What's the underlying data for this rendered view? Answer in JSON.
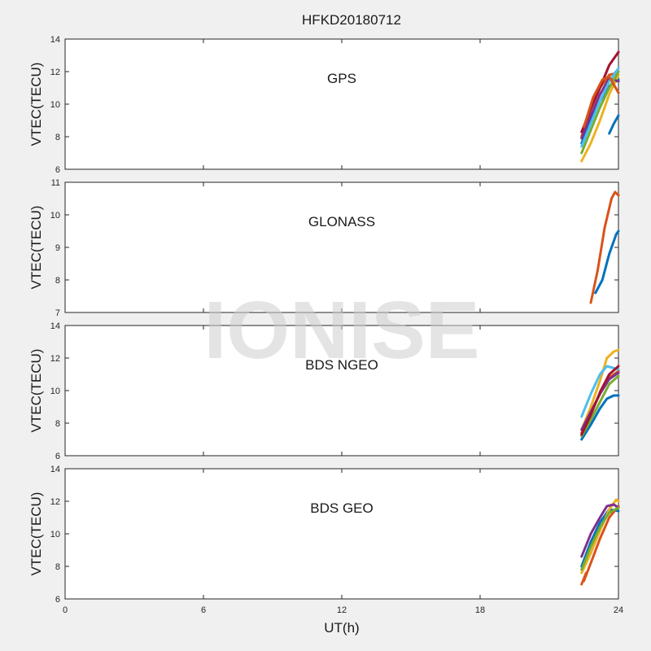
{
  "figure": {
    "title": "HFKD20180712",
    "xlabel": "UT(h)",
    "watermark": "IONISE"
  },
  "chart_data": [
    {
      "type": "line",
      "panel_label": "GPS",
      "ylabel": "VTEC(TECU)",
      "xlim": [
        0,
        24
      ],
      "ylim": [
        6,
        14
      ],
      "xticks": [
        0,
        6,
        12,
        18,
        24
      ],
      "yticks": [
        6,
        8,
        10,
        12,
        14
      ],
      "series": [
        {
          "color": "#0072bd",
          "x": [
            22.4,
            22.8,
            23.2,
            23.6,
            24.0
          ],
          "y": [
            7.6,
            9.0,
            10.2,
            11.1,
            11.5
          ]
        },
        {
          "color": "#d95319",
          "x": [
            22.4,
            22.8,
            23.2,
            23.6,
            23.9
          ],
          "y": [
            8.0,
            9.8,
            11.0,
            11.8,
            11.9
          ]
        },
        {
          "color": "#edb120",
          "x": [
            22.4,
            22.8,
            23.2,
            23.6,
            24.0
          ],
          "y": [
            6.5,
            7.6,
            9.0,
            10.6,
            11.8
          ]
        },
        {
          "color": "#7e2f8e",
          "x": [
            22.4,
            22.8,
            23.2,
            23.6,
            24.0
          ],
          "y": [
            7.9,
            9.3,
            10.6,
            11.6,
            11.4
          ]
        },
        {
          "color": "#77ac30",
          "x": [
            22.4,
            22.8,
            23.2,
            23.6,
            24.0
          ],
          "y": [
            7.0,
            8.4,
            9.8,
            11.0,
            12.0
          ]
        },
        {
          "color": "#4dbeee",
          "x": [
            22.4,
            22.8,
            23.2,
            23.6,
            24.0
          ],
          "y": [
            7.4,
            8.8,
            10.2,
            11.4,
            12.2
          ]
        },
        {
          "color": "#a2142f",
          "x": [
            22.4,
            22.8,
            23.2,
            23.6,
            24.0
          ],
          "y": [
            8.3,
            9.7,
            11.0,
            12.4,
            13.2
          ]
        },
        {
          "color": "#0072bd",
          "x": [
            23.6,
            23.8,
            24.0
          ],
          "y": [
            8.2,
            8.8,
            9.3
          ]
        },
        {
          "color": "#d95319",
          "x": [
            22.5,
            22.9,
            23.3,
            23.6,
            24.0
          ],
          "y": [
            8.6,
            10.4,
            11.5,
            11.7,
            10.7
          ]
        }
      ]
    },
    {
      "type": "line",
      "panel_label": "GLONASS",
      "ylabel": "VTEC(TECU)",
      "xlim": [
        0,
        24
      ],
      "ylim": [
        7,
        11
      ],
      "xticks": [
        0,
        6,
        12,
        18,
        24
      ],
      "yticks": [
        7,
        8,
        9,
        10,
        11
      ],
      "series": [
        {
          "color": "#d95319",
          "x": [
            22.8,
            23.1,
            23.4,
            23.7,
            23.85,
            24.0
          ],
          "y": [
            7.3,
            8.3,
            9.6,
            10.5,
            10.7,
            10.6
          ]
        },
        {
          "color": "#0072bd",
          "x": [
            23.0,
            23.3,
            23.6,
            23.9,
            24.0
          ],
          "y": [
            7.6,
            8.0,
            8.8,
            9.4,
            9.5
          ]
        }
      ]
    },
    {
      "type": "line",
      "panel_label": "BDS NGEO",
      "ylabel": "VTEC(TECU)",
      "xlim": [
        0,
        24
      ],
      "ylim": [
        6,
        14
      ],
      "xticks": [
        0,
        6,
        12,
        18,
        24
      ],
      "yticks": [
        6,
        8,
        10,
        12,
        14
      ],
      "series": [
        {
          "color": "#0072bd",
          "x": [
            22.4,
            22.8,
            23.2,
            23.5,
            23.8,
            24.0
          ],
          "y": [
            7.0,
            7.9,
            8.9,
            9.5,
            9.7,
            9.7
          ]
        },
        {
          "color": "#d95319",
          "x": [
            22.4,
            22.8,
            23.2,
            23.6,
            24.0
          ],
          "y": [
            7.4,
            8.6,
            9.8,
            10.8,
            11.2
          ]
        },
        {
          "color": "#edb120",
          "x": [
            22.4,
            22.8,
            23.2,
            23.5,
            23.8,
            24.0
          ],
          "y": [
            7.6,
            9.0,
            10.6,
            12.0,
            12.4,
            12.5
          ]
        },
        {
          "color": "#7e2f8e",
          "x": [
            22.4,
            22.8,
            23.2,
            23.6,
            24.0
          ],
          "y": [
            7.6,
            8.7,
            9.8,
            10.7,
            11.1
          ]
        },
        {
          "color": "#77ac30",
          "x": [
            22.4,
            22.8,
            23.2,
            23.6,
            24.0
          ],
          "y": [
            7.2,
            8.2,
            9.3,
            10.4,
            10.9
          ]
        },
        {
          "color": "#4dbeee",
          "x": [
            22.4,
            22.8,
            23.2,
            23.5,
            24.0
          ],
          "y": [
            8.4,
            9.8,
            11.0,
            11.5,
            11.3
          ]
        },
        {
          "color": "#a2142f",
          "x": [
            22.4,
            22.8,
            23.2,
            23.6,
            24.0
          ],
          "y": [
            7.3,
            8.5,
            9.9,
            11.0,
            11.5
          ]
        }
      ]
    },
    {
      "type": "line",
      "panel_label": "BDS GEO",
      "ylabel": "VTEC(TECU)",
      "xlim": [
        0,
        24
      ],
      "ylim": [
        6,
        14
      ],
      "xticks": [
        0,
        6,
        12,
        18,
        24
      ],
      "yticks": [
        6,
        8,
        10,
        12,
        14
      ],
      "series": [
        {
          "color": "#0072bd",
          "x": [
            22.4,
            22.8,
            23.2,
            23.6,
            24.0
          ],
          "y": [
            8.0,
            9.5,
            10.7,
            11.5,
            11.4
          ]
        },
        {
          "color": "#d95319",
          "x": [
            22.5,
            22.8,
            23.2,
            23.6,
            24.0
          ],
          "y": [
            7.1,
            8.2,
            9.7,
            11.0,
            11.7
          ]
        },
        {
          "color": "#edb120",
          "x": [
            22.4,
            22.8,
            23.2,
            23.6,
            23.9,
            24.0
          ],
          "y": [
            7.6,
            8.8,
            10.2,
            11.5,
            12.1,
            12.0
          ]
        },
        {
          "color": "#7e2f8e",
          "x": [
            22.4,
            22.8,
            23.2,
            23.5,
            23.8,
            24.0
          ],
          "y": [
            8.6,
            10.0,
            11.0,
            11.7,
            11.8,
            11.6
          ]
        },
        {
          "color": "#77ac30",
          "x": [
            22.4,
            22.8,
            23.2,
            23.6,
            24.0
          ],
          "y": [
            7.8,
            9.2,
            10.4,
            11.3,
            11.6
          ]
        },
        {
          "color": "#d95319",
          "x": [
            22.4,
            22.6
          ],
          "y": [
            6.9,
            7.6
          ]
        }
      ]
    }
  ]
}
